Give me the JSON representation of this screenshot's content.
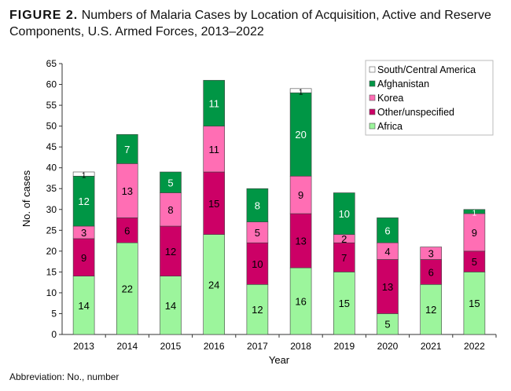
{
  "title_prefix": "FIGURE 2.",
  "title": "Numbers of Malaria Cases by Location of Acquisition, Active and Reserve Components, U.S. Armed Forces, 2013–2022",
  "footnote": "Abbreviation: No., number",
  "chart_data": {
    "type": "bar",
    "stacked": true,
    "xlabel": "Year",
    "ylabel": "No. of cases",
    "ylim": [
      0,
      65
    ],
    "yticks": [
      0,
      5,
      10,
      15,
      20,
      25,
      30,
      35,
      40,
      45,
      50,
      55,
      60,
      65
    ],
    "grid": false,
    "legend_position": "top-right",
    "categories": [
      "2013",
      "2014",
      "2015",
      "2016",
      "2017",
      "2018",
      "2019",
      "2020",
      "2021",
      "2022"
    ],
    "series": [
      {
        "name": "Africa",
        "color": "#9cf59c",
        "values": [
          14,
          22,
          14,
          24,
          12,
          16,
          15,
          5,
          12,
          15
        ]
      },
      {
        "name": "Other/unspecified",
        "color": "#cc0066",
        "values": [
          9,
          6,
          12,
          15,
          10,
          13,
          7,
          13,
          6,
          5
        ]
      },
      {
        "name": "Korea",
        "color": "#ff6eb4",
        "values": [
          3,
          13,
          8,
          11,
          5,
          9,
          2,
          4,
          3,
          9
        ]
      },
      {
        "name": "Afghanistan",
        "color": "#009645",
        "values": [
          12,
          7,
          5,
          11,
          8,
          20,
          10,
          6,
          0,
          1
        ]
      },
      {
        "name": "South/Central America",
        "color": "#ffffff",
        "values": [
          1,
          0,
          0,
          0,
          0,
          1,
          0,
          0,
          0,
          0
        ]
      }
    ]
  }
}
